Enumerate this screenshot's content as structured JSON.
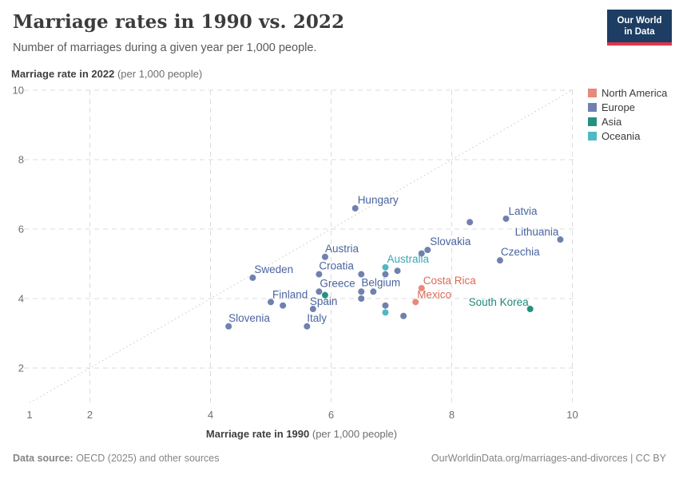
{
  "header": {
    "title": "Marriage rates in 1990 vs. 2022",
    "subtitle": "Number of marriages during a given year per 1,000 people.",
    "logo": {
      "line1": "Our World",
      "line2": "in Data",
      "bg_color": "#1d3d63",
      "bar_color": "#e0364a"
    }
  },
  "axes": {
    "y_title_bold": "Marriage rate in 2022",
    "y_title_unit": " (per 1,000 people)",
    "x_title_bold": "Marriage rate in 1990",
    "x_title_unit": " (per 1,000 people)"
  },
  "legend": {
    "position": "top-right",
    "items": [
      {
        "label": "North America",
        "color": "#E8897B"
      },
      {
        "label": "Europe",
        "color": "#7081AF"
      },
      {
        "label": "Asia",
        "color": "#24917F"
      },
      {
        "label": "Oceania",
        "color": "#4FB9C2"
      }
    ]
  },
  "chart_data": {
    "type": "scatter",
    "title": "Marriage rates in 1990 vs. 2022",
    "xlabel": "Marriage rate in 1990 (per 1,000 people)",
    "ylabel": "Marriage rate in 2022 (per 1,000 people)",
    "xlim": [
      1,
      10
    ],
    "ylim": [
      1,
      10
    ],
    "x_tick_labels": [
      1,
      2,
      4,
      6,
      8,
      10
    ],
    "y_tick_labels": [
      2,
      4,
      6,
      8,
      10
    ],
    "x_gridlines": [
      2,
      4,
      6,
      8,
      10
    ],
    "y_gridlines": [
      2,
      4,
      6,
      8,
      10
    ],
    "grid": true,
    "diagonal_line": {
      "description": "y = x parity reference line",
      "from": [
        1,
        1
      ],
      "to": [
        10,
        10
      ]
    },
    "legend_position": "top-right",
    "series": [
      {
        "name": "North America",
        "color": "#E8897B",
        "label_color": "#DB6A55",
        "points": [
          {
            "label": "Costa Rica",
            "x": 7.5,
            "y": 4.3,
            "anchor": "start",
            "dx": 2,
            "dy": -5
          },
          {
            "label": "Mexico",
            "x": 7.4,
            "y": 3.9,
            "anchor": "start",
            "dx": 2,
            "dy": -5
          }
        ]
      },
      {
        "name": "Europe",
        "color": "#7081AF",
        "label_color": "#4A649E",
        "points": [
          {
            "label": "Hungary",
            "x": 6.4,
            "y": 6.6,
            "anchor": "start",
            "dx": 3,
            "dy": -6
          },
          {
            "label": "Latvia",
            "x": 8.9,
            "y": 6.3,
            "anchor": "start",
            "dx": 3,
            "dy": -5
          },
          {
            "label": "Lithuania",
            "x": 9.8,
            "y": 5.7,
            "anchor": "end",
            "dx": -2,
            "dy": -5
          },
          {
            "label": "Slovakia",
            "x": 7.6,
            "y": 5.4,
            "anchor": "start",
            "dx": 3,
            "dy": -6
          },
          {
            "label": "Czechia",
            "x": 8.8,
            "y": 5.1,
            "anchor": "start",
            "dx": 1,
            "dy": -6
          },
          {
            "label": "Austria",
            "x": 5.9,
            "y": 5.2,
            "anchor": "start",
            "dx": 0,
            "dy": -6
          },
          {
            "label": "Croatia",
            "x": 5.8,
            "y": 4.7,
            "anchor": "start",
            "dx": 0,
            "dy": -6
          },
          {
            "label": "Sweden",
            "x": 4.7,
            "y": 4.6,
            "anchor": "start",
            "dx": 2,
            "dy": -6
          },
          {
            "label": "Greece",
            "x": 5.8,
            "y": 4.2,
            "anchor": "start",
            "dx": 1,
            "dy": -6
          },
          {
            "label": "Belgium",
            "x": 6.7,
            "y": 4.2,
            "anchor": "start",
            "dx": -15,
            "dy": -7
          },
          {
            "label": "Finland",
            "x": 5.0,
            "y": 3.9,
            "anchor": "start",
            "dx": 2,
            "dy": -5
          },
          {
            "label": "Spain",
            "x": 5.7,
            "y": 3.7,
            "anchor": "start",
            "dx": -4,
            "dy": -5
          },
          {
            "label": "Slovenia",
            "x": 4.3,
            "y": 3.2,
            "anchor": "start",
            "dx": 0,
            "dy": -6
          },
          {
            "label": "Italy",
            "x": 5.6,
            "y": 3.2,
            "anchor": "start",
            "dx": 0,
            "dy": -6
          },
          {
            "label": "",
            "x": 8.3,
            "y": 6.2
          },
          {
            "label": "",
            "x": 7.5,
            "y": 5.3
          },
          {
            "label": "",
            "x": 7.1,
            "y": 4.8
          },
          {
            "label": "",
            "x": 6.9,
            "y": 4.7
          },
          {
            "label": "",
            "x": 6.5,
            "y": 4.7
          },
          {
            "label": "",
            "x": 6.5,
            "y": 4.2
          },
          {
            "label": "",
            "x": 6.5,
            "y": 4.0
          },
          {
            "label": "",
            "x": 5.2,
            "y": 3.8
          },
          {
            "label": "",
            "x": 6.9,
            "y": 3.8
          },
          {
            "label": "",
            "x": 7.2,
            "y": 3.5
          }
        ]
      },
      {
        "name": "Asia",
        "color": "#24917F",
        "label_color": "#1D8A7B",
        "points": [
          {
            "label": "South Korea",
            "x": 9.3,
            "y": 3.7,
            "anchor": "end",
            "dx": -2,
            "dy": -4
          },
          {
            "label": "",
            "x": 5.9,
            "y": 4.1
          }
        ]
      },
      {
        "name": "Oceania",
        "color": "#4FB9C2",
        "label_color": "#3AA7B4",
        "points": [
          {
            "label": "Australia",
            "x": 6.9,
            "y": 4.9,
            "anchor": "start",
            "dx": 2,
            "dy": -6
          },
          {
            "label": "",
            "x": 6.9,
            "y": 3.6
          }
        ]
      }
    ]
  },
  "footer": {
    "source_bold": "Data source:",
    "source_rest": " OECD (2025) and other sources",
    "credit": "OurWorldinData.org/marriages-and-divorces | CC BY"
  }
}
